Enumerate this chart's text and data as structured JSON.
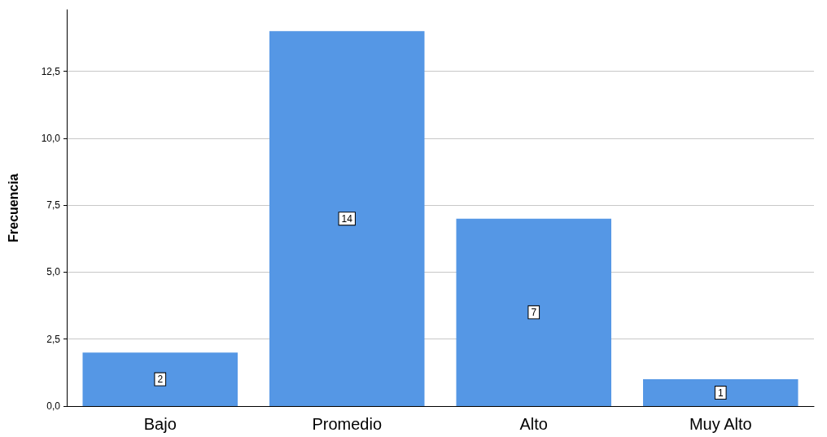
{
  "chart_data": {
    "type": "bar",
    "ylabel": "Frecuencia",
    "categories": [
      "Bajo",
      "Promedio",
      "Alto",
      "Muy Alto"
    ],
    "values": [
      2,
      14,
      7,
      1
    ],
    "color": "#5597e5",
    "ylim": [
      0,
      14.8
    ],
    "yticks": [
      {
        "value": 0,
        "label": "0,0"
      },
      {
        "value": 2.5,
        "label": "2,5"
      },
      {
        "value": 5,
        "label": "5,0"
      },
      {
        "value": 7.5,
        "label": "7,5"
      },
      {
        "value": 10,
        "label": "10,0"
      },
      {
        "value": 12.5,
        "label": "12,5"
      }
    ],
    "grid": "y",
    "data_labels": true
  }
}
